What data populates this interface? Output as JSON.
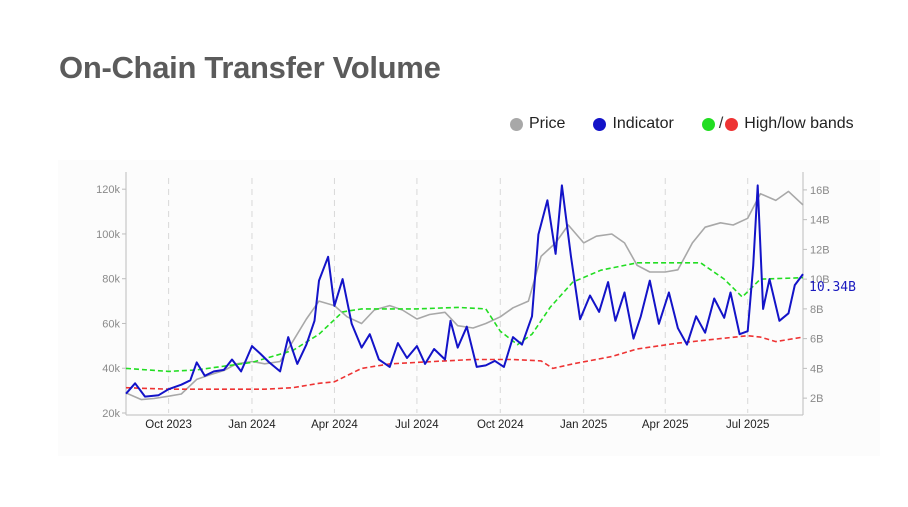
{
  "title": "On-Chain Transfer Volume",
  "legend": [
    {
      "label": "Price",
      "color": "#a8a8a8"
    },
    {
      "label": "Indicator",
      "color": "#1313c8"
    },
    {
      "label": "High/low bands",
      "color_high": "#22dd22",
      "color_low": "#ee3333",
      "separator": "/"
    }
  ],
  "chart_data": {
    "type": "line",
    "x_ticks": [
      "Oct 2023",
      "Jan 2024",
      "Apr 2024",
      "Jul 2024",
      "Oct 2024",
      "Jan 2025",
      "Apr 2025",
      "Jul 2025"
    ],
    "x_range": [
      "2023-08-15",
      "2025-08-31"
    ],
    "y_left": {
      "label": "",
      "ticks": [
        "20k",
        "40k",
        "60k",
        "80k",
        "100k",
        "120k"
      ],
      "range": [
        20000,
        125000
      ]
    },
    "y_right": {
      "label": "",
      "ticks": [
        "2B",
        "4B",
        "6B",
        "8B",
        "10B",
        "12B",
        "14B",
        "16B"
      ],
      "range": [
        1,
        16.8
      ]
    },
    "last_value_label": "10.34B",
    "grid": "vertical dashed at x ticks",
    "series": [
      {
        "name": "Price",
        "axis": "left",
        "color": "#a8a8a8",
        "style": "solid",
        "points": [
          [
            "2023-08-15",
            29000
          ],
          [
            "2023-09-01",
            26000
          ],
          [
            "2023-09-15",
            26500
          ],
          [
            "2023-10-01",
            27500
          ],
          [
            "2023-10-15",
            28500
          ],
          [
            "2023-11-01",
            35000
          ],
          [
            "2023-11-15",
            37000
          ],
          [
            "2023-12-01",
            39000
          ],
          [
            "2023-12-15",
            42000
          ],
          [
            "2024-01-01",
            43000
          ],
          [
            "2024-01-15",
            42000
          ],
          [
            "2024-02-01",
            43000
          ],
          [
            "2024-02-15",
            52000
          ],
          [
            "2024-03-01",
            62000
          ],
          [
            "2024-03-15",
            70000
          ],
          [
            "2024-04-01",
            68000
          ],
          [
            "2024-04-15",
            63000
          ],
          [
            "2024-05-01",
            60000
          ],
          [
            "2024-05-15",
            66000
          ],
          [
            "2024-06-01",
            68000
          ],
          [
            "2024-06-15",
            66000
          ],
          [
            "2024-07-01",
            62000
          ],
          [
            "2024-07-15",
            64000
          ],
          [
            "2024-08-01",
            65000
          ],
          [
            "2024-08-15",
            59000
          ],
          [
            "2024-09-01",
            58000
          ],
          [
            "2024-09-15",
            60000
          ],
          [
            "2024-10-01",
            63000
          ],
          [
            "2024-10-15",
            67000
          ],
          [
            "2024-11-01",
            70000
          ],
          [
            "2024-11-15",
            90000
          ],
          [
            "2024-12-01",
            96000
          ],
          [
            "2024-12-15",
            104000
          ],
          [
            "2025-01-01",
            96000
          ],
          [
            "2025-01-15",
            99000
          ],
          [
            "2025-02-01",
            100000
          ],
          [
            "2025-02-15",
            96000
          ],
          [
            "2025-03-01",
            86000
          ],
          [
            "2025-03-15",
            83000
          ],
          [
            "2025-04-01",
            83000
          ],
          [
            "2025-04-15",
            84000
          ],
          [
            "2025-05-01",
            96000
          ],
          [
            "2025-05-15",
            103000
          ],
          [
            "2025-06-01",
            105000
          ],
          [
            "2025-06-15",
            104000
          ],
          [
            "2025-07-01",
            107000
          ],
          [
            "2025-07-15",
            118000
          ],
          [
            "2025-08-01",
            115000
          ],
          [
            "2025-08-15",
            119000
          ],
          [
            "2025-08-31",
            113000
          ]
        ]
      },
      {
        "name": "Indicator",
        "axis": "right",
        "color": "#1313c8",
        "style": "solid",
        "points": [
          [
            "2023-08-15",
            2.3
          ],
          [
            "2023-08-25",
            3.0
          ],
          [
            "2023-09-05",
            2.1
          ],
          [
            "2023-09-20",
            2.2
          ],
          [
            "2023-10-01",
            2.6
          ],
          [
            "2023-10-15",
            2.9
          ],
          [
            "2023-10-25",
            3.2
          ],
          [
            "2023-11-01",
            4.4
          ],
          [
            "2023-11-10",
            3.5
          ],
          [
            "2023-11-20",
            3.8
          ],
          [
            "2023-12-01",
            3.9
          ],
          [
            "2023-12-10",
            4.6
          ],
          [
            "2023-12-20",
            3.8
          ],
          [
            "2024-01-01",
            5.5
          ],
          [
            "2024-01-10",
            5.0
          ],
          [
            "2024-01-20",
            4.4
          ],
          [
            "2024-02-01",
            3.8
          ],
          [
            "2024-02-10",
            6.1
          ],
          [
            "2024-02-20",
            4.3
          ],
          [
            "2024-03-01",
            5.6
          ],
          [
            "2024-03-10",
            7.2
          ],
          [
            "2024-03-15",
            9.9
          ],
          [
            "2024-03-25",
            11.5
          ],
          [
            "2024-04-01",
            8.2
          ],
          [
            "2024-04-10",
            10.0
          ],
          [
            "2024-04-20",
            7.0
          ],
          [
            "2024-05-01",
            5.4
          ],
          [
            "2024-05-10",
            6.3
          ],
          [
            "2024-05-20",
            4.6
          ],
          [
            "2024-06-01",
            4.1
          ],
          [
            "2024-06-10",
            5.7
          ],
          [
            "2024-06-20",
            4.7
          ],
          [
            "2024-07-01",
            5.5
          ],
          [
            "2024-07-10",
            4.3
          ],
          [
            "2024-07-20",
            5.3
          ],
          [
            "2024-08-01",
            4.6
          ],
          [
            "2024-08-07",
            7.2
          ],
          [
            "2024-08-15",
            5.4
          ],
          [
            "2024-08-25",
            6.8
          ],
          [
            "2024-09-05",
            4.1
          ],
          [
            "2024-09-15",
            4.2
          ],
          [
            "2024-09-25",
            4.5
          ],
          [
            "2024-10-05",
            4.1
          ],
          [
            "2024-10-15",
            6.1
          ],
          [
            "2024-10-25",
            5.6
          ],
          [
            "2024-11-05",
            7.5
          ],
          [
            "2024-11-12",
            13.0
          ],
          [
            "2024-11-22",
            15.3
          ],
          [
            "2024-12-01",
            11.7
          ],
          [
            "2024-12-08",
            16.3
          ],
          [
            "2024-12-18",
            11.5
          ],
          [
            "2024-12-28",
            7.3
          ],
          [
            "2025-01-08",
            8.9
          ],
          [
            "2025-01-18",
            7.8
          ],
          [
            "2025-01-28",
            9.8
          ],
          [
            "2025-02-05",
            7.2
          ],
          [
            "2025-02-15",
            9.1
          ],
          [
            "2025-02-25",
            6.0
          ],
          [
            "2025-03-05",
            7.5
          ],
          [
            "2025-03-15",
            9.9
          ],
          [
            "2025-03-25",
            7.0
          ],
          [
            "2025-04-05",
            9.1
          ],
          [
            "2025-04-15",
            6.7
          ],
          [
            "2025-04-25",
            5.6
          ],
          [
            "2025-05-05",
            7.5
          ],
          [
            "2025-05-15",
            6.4
          ],
          [
            "2025-05-25",
            8.7
          ],
          [
            "2025-06-05",
            7.4
          ],
          [
            "2025-06-12",
            9.1
          ],
          [
            "2025-06-22",
            6.3
          ],
          [
            "2025-07-01",
            6.5
          ],
          [
            "2025-07-07",
            10.9
          ],
          [
            "2025-07-12",
            16.3
          ],
          [
            "2025-07-18",
            8.0
          ],
          [
            "2025-07-25",
            10.0
          ],
          [
            "2025-08-05",
            7.2
          ],
          [
            "2025-08-15",
            7.7
          ],
          [
            "2025-08-22",
            9.6
          ],
          [
            "2025-08-31",
            10.34
          ]
        ]
      },
      {
        "name": "High band",
        "axis": "right",
        "color": "#22dd22",
        "style": "dashed",
        "points": [
          [
            "2023-08-15",
            4.0
          ],
          [
            "2023-10-01",
            3.8
          ],
          [
            "2023-11-01",
            3.9
          ],
          [
            "2024-01-01",
            4.4
          ],
          [
            "2024-02-15",
            5.2
          ],
          [
            "2024-03-15",
            6.3
          ],
          [
            "2024-04-10",
            7.8
          ],
          [
            "2024-05-01",
            8.0
          ],
          [
            "2024-06-01",
            8.0
          ],
          [
            "2024-07-01",
            8.0
          ],
          [
            "2024-08-15",
            8.1
          ],
          [
            "2024-09-15",
            8.0
          ],
          [
            "2024-10-01",
            6.5
          ],
          [
            "2024-10-20",
            5.6
          ],
          [
            "2024-11-05",
            6.3
          ],
          [
            "2024-11-25",
            8.1
          ],
          [
            "2024-12-20",
            9.8
          ],
          [
            "2025-01-20",
            10.6
          ],
          [
            "2025-03-01",
            11.1
          ],
          [
            "2025-04-15",
            11.1
          ],
          [
            "2025-05-10",
            11.1
          ],
          [
            "2025-06-05",
            10.0
          ],
          [
            "2025-06-25",
            8.8
          ],
          [
            "2025-07-15",
            10.0
          ],
          [
            "2025-08-31",
            10.1
          ]
        ]
      },
      {
        "name": "Low band",
        "axis": "right",
        "color": "#ee3333",
        "style": "dashed",
        "points": [
          [
            "2023-08-15",
            2.7
          ],
          [
            "2023-10-01",
            2.6
          ],
          [
            "2023-12-01",
            2.6
          ],
          [
            "2024-01-15",
            2.6
          ],
          [
            "2024-02-15",
            2.7
          ],
          [
            "2024-03-15",
            3.0
          ],
          [
            "2024-04-01",
            3.1
          ],
          [
            "2024-05-01",
            4.0
          ],
          [
            "2024-06-01",
            4.3
          ],
          [
            "2024-07-01",
            4.4
          ],
          [
            "2024-08-01",
            4.5
          ],
          [
            "2024-09-01",
            4.6
          ],
          [
            "2024-10-15",
            4.6
          ],
          [
            "2024-11-15",
            4.5
          ],
          [
            "2024-11-28",
            4.0
          ],
          [
            "2024-12-20",
            4.3
          ],
          [
            "2025-02-01",
            4.8
          ],
          [
            "2025-03-01",
            5.3
          ],
          [
            "2025-04-15",
            5.7
          ],
          [
            "2025-05-01",
            5.8
          ],
          [
            "2025-06-01",
            6.0
          ],
          [
            "2025-07-01",
            6.2
          ],
          [
            "2025-07-15",
            6.1
          ],
          [
            "2025-08-01",
            5.8
          ],
          [
            "2025-08-31",
            6.1
          ]
        ]
      }
    ]
  }
}
